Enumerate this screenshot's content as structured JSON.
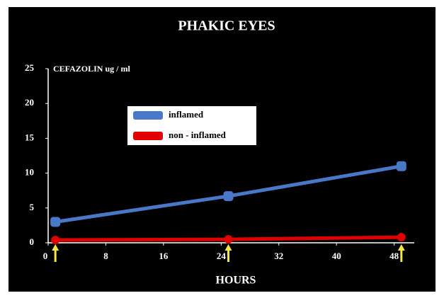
{
  "chart_data": {
    "type": "line",
    "title": "PHAKIC EYES",
    "ylabel": "CEFAZOLIN ug / ml",
    "xlabel": "HOURS",
    "x": [
      1,
      25,
      49
    ],
    "series": [
      {
        "name": "inflamed",
        "color": "#4a78c8",
        "values": [
          3,
          6.7,
          11
        ]
      },
      {
        "name": "non - inflamed",
        "color": "#e00000",
        "values": [
          0.4,
          0.5,
          0.8
        ]
      }
    ],
    "xlim": [
      0,
      50
    ],
    "xticks": [
      0,
      8,
      16,
      24,
      32,
      40,
      48
    ],
    "ylim": [
      0,
      25
    ],
    "yticks": [
      0,
      5,
      10,
      15,
      20,
      25
    ],
    "annotation_arrows": {
      "x": [
        1,
        25,
        49
      ],
      "color": "#f5e642"
    }
  }
}
